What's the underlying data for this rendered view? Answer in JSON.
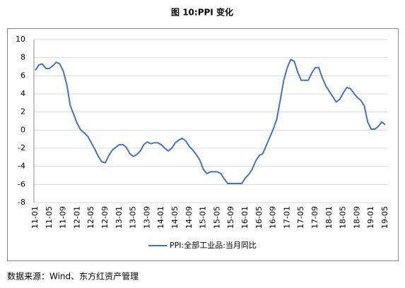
{
  "chart_data": {
    "type": "line",
    "title": "图 10:PPI 变化",
    "source": "数据来源：Wind、东方红资产管理",
    "categories": [
      "11-01",
      null,
      null,
      null,
      "11-05",
      null,
      null,
      null,
      "11-09",
      null,
      null,
      null,
      "12-01",
      null,
      null,
      null,
      "12-05",
      null,
      null,
      null,
      "12-09",
      null,
      null,
      null,
      "13-01",
      null,
      null,
      null,
      "13-05",
      null,
      null,
      null,
      "13-09",
      null,
      null,
      null,
      "14-01",
      null,
      null,
      null,
      "14-05",
      null,
      null,
      null,
      "14-09",
      null,
      null,
      null,
      "15-01",
      null,
      null,
      null,
      "15-05",
      null,
      null,
      null,
      "15-09",
      null,
      null,
      null,
      "16-01",
      null,
      null,
      null,
      "16-05",
      null,
      null,
      null,
      "16-09",
      null,
      null,
      null,
      "17-01",
      null,
      null,
      null,
      "17-05",
      null,
      null,
      null,
      "17-09",
      null,
      null,
      null,
      "18-01",
      null,
      null,
      null,
      "18-05",
      null,
      null,
      null,
      "18-09",
      null,
      null,
      null,
      "19-01",
      null,
      null,
      null,
      "19-05"
    ],
    "series": [
      {
        "name": "PPI:全部工业品:当月同比",
        "color": "#4472c4",
        "values": [
          6.6,
          7.2,
          7.3,
          6.8,
          6.8,
          7.1,
          7.5,
          7.3,
          6.5,
          5.0,
          2.7,
          1.7,
          0.7,
          0.0,
          -0.3,
          -0.7,
          -1.4,
          -2.1,
          -2.9,
          -3.5,
          -3.6,
          -2.8,
          -2.2,
          -1.9,
          -1.6,
          -1.6,
          -1.9,
          -2.6,
          -2.9,
          -2.7,
          -2.3,
          -1.6,
          -1.3,
          -1.5,
          -1.4,
          -1.4,
          -1.6,
          -2.0,
          -2.3,
          -2.0,
          -1.4,
          -1.1,
          -0.9,
          -1.2,
          -1.8,
          -2.2,
          -2.7,
          -3.3,
          -4.3,
          -4.8,
          -4.6,
          -4.6,
          -4.6,
          -4.8,
          -5.4,
          -5.9,
          -5.9,
          -5.9,
          -5.9,
          -5.9,
          -5.3,
          -4.9,
          -4.3,
          -3.4,
          -2.8,
          -2.6,
          -1.7,
          -0.8,
          0.1,
          1.2,
          3.3,
          5.5,
          6.9,
          7.8,
          7.6,
          6.4,
          5.5,
          5.5,
          5.5,
          6.3,
          6.9,
          6.9,
          5.8,
          4.9,
          4.3,
          3.7,
          3.1,
          3.4,
          4.1,
          4.7,
          4.6,
          4.1,
          3.6,
          3.3,
          2.7,
          0.9,
          0.1,
          0.1,
          0.4,
          0.9,
          0.6
        ]
      }
    ],
    "ylim": [
      -8,
      10
    ],
    "yticks": [
      -8,
      -6,
      -4,
      -2,
      0,
      2,
      4,
      6,
      8,
      10
    ],
    "grid": true,
    "legend": "bottom"
  }
}
